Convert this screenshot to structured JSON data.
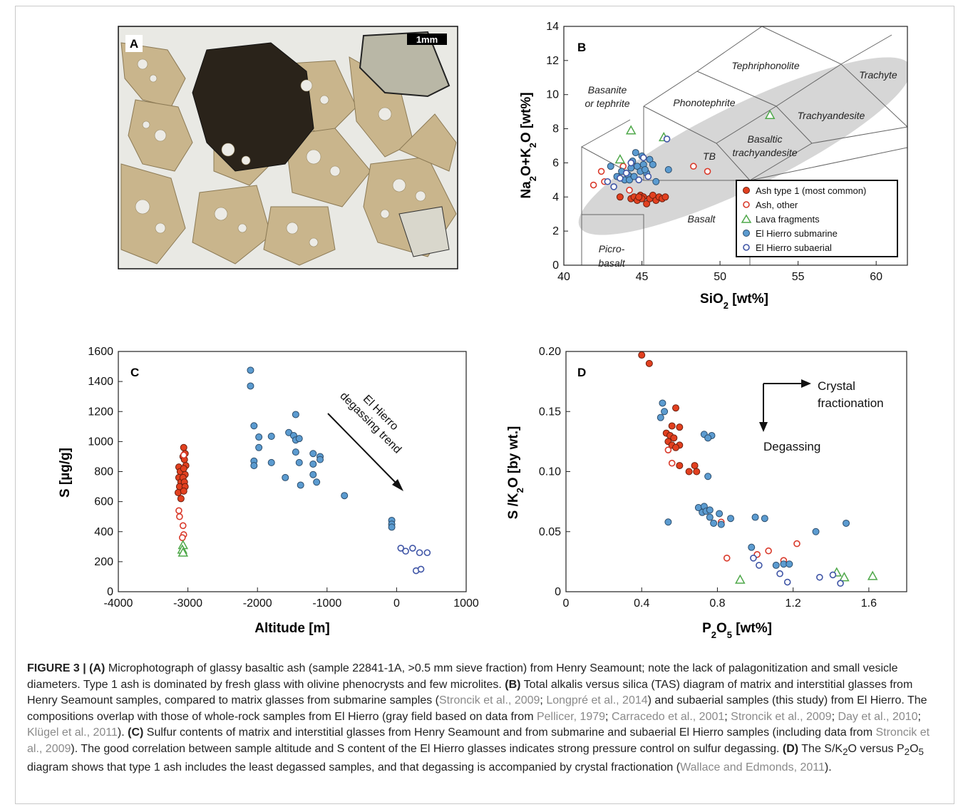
{
  "figure": {
    "panel_a": {
      "label": "A",
      "scale_label": "1mm"
    },
    "panel_b": {
      "label": "B"
    },
    "panel_c": {
      "label": "C"
    },
    "panel_d": {
      "label": "D"
    }
  },
  "chart_data": [
    {
      "type": "scatter",
      "panel": "B",
      "xlabel": "SiO2 [wt%]",
      "ylabel": "Na2O+K2O [wt%]",
      "xlim": [
        40,
        62
      ],
      "ylim": [
        0,
        14
      ],
      "xticks": [
        "40",
        "45",
        "50",
        "55",
        "60"
      ],
      "yticks": [
        "0",
        "2",
        "4",
        "6",
        "8",
        "10",
        "12",
        "14"
      ],
      "field_labels": [
        "Tephriphonolite",
        "Trachyte",
        "Basanite",
        "or tephrite",
        "Phonotephrite",
        "Trachyandesite",
        "Basaltic",
        "trachyandesite",
        "TB",
        "Basalt",
        "Picro-",
        "basalt"
      ],
      "legend": [
        "Ash type 1 (most common)",
        "Ash, other",
        "Lava fragments",
        "El Hierro submarine",
        "El Hierro subaerial"
      ],
      "series": [
        {
          "name": "Ash type 1 (most common)",
          "points": [
            [
              43.6,
              4.0
            ],
            [
              44.3,
              3.9
            ],
            [
              44.5,
              4.0
            ],
            [
              44.7,
              3.8
            ],
            [
              44.9,
              4.1
            ],
            [
              45.1,
              4.0
            ],
            [
              45.3,
              3.6
            ],
            [
              45.5,
              3.9
            ],
            [
              45.7,
              4.1
            ],
            [
              45.9,
              3.8
            ],
            [
              46.1,
              4.0
            ],
            [
              46.3,
              3.9
            ],
            [
              46.5,
              4.0
            ],
            [
              45.0,
              3.9
            ],
            [
              44.8,
              4.0
            ]
          ]
        },
        {
          "name": "Ash, other",
          "points": [
            [
              41.9,
              4.7
            ],
            [
              42.4,
              5.5
            ],
            [
              42.6,
              4.9
            ],
            [
              43.8,
              5.8
            ],
            [
              44.2,
              4.4
            ],
            [
              48.3,
              5.8
            ],
            [
              49.2,
              5.5
            ]
          ]
        },
        {
          "name": "Lava fragments",
          "points": [
            [
              44.3,
              7.9
            ],
            [
              46.4,
              7.5
            ],
            [
              43.6,
              6.2
            ],
            [
              53.2,
              8.8
            ]
          ]
        },
        {
          "name": "El Hierro submarine",
          "points": [
            [
              43.0,
              5.8
            ],
            [
              43.4,
              5.2
            ],
            [
              43.7,
              5.5
            ],
            [
              43.9,
              5.0
            ],
            [
              44.1,
              5.3
            ],
            [
              44.3,
              5.7
            ],
            [
              44.4,
              6.1
            ],
            [
              44.6,
              6.6
            ],
            [
              44.7,
              5.8
            ],
            [
              44.9,
              5.5
            ],
            [
              45.0,
              6.4
            ],
            [
              45.1,
              5.9
            ],
            [
              45.3,
              5.4
            ],
            [
              45.5,
              6.2
            ],
            [
              45.7,
              5.9
            ],
            [
              45.9,
              4.9
            ],
            [
              46.7,
              5.6
            ],
            [
              44.2,
              5.0
            ],
            [
              44.5,
              5.2
            ],
            [
              45.2,
              5.6
            ]
          ]
        },
        {
          "name": "El Hierro subaerial",
          "points": [
            [
              42.8,
              4.9
            ],
            [
              43.2,
              4.6
            ],
            [
              43.6,
              5.1
            ],
            [
              44.0,
              5.4
            ],
            [
              44.3,
              6.0
            ],
            [
              44.8,
              5.0
            ],
            [
              45.1,
              6.3
            ],
            [
              46.6,
              7.4
            ],
            [
              45.4,
              5.2
            ]
          ]
        }
      ]
    },
    {
      "type": "scatter",
      "panel": "C",
      "xlabel": "Altitude [m]",
      "ylabel": "S [µg/g]",
      "xlim": [
        -4000,
        1000
      ],
      "ylim": [
        0,
        1600
      ],
      "xticks": [
        "-4000",
        "-3000",
        "-2000",
        "-1000",
        "0",
        "1000"
      ],
      "yticks": [
        "0",
        "200",
        "400",
        "600",
        "800",
        "1000",
        "1200",
        "1400",
        "1600"
      ],
      "annotation": [
        "El Hierro",
        "degassing trend"
      ],
      "series": [
        {
          "name": "Ash type 1",
          "points": [
            [
              -3130,
              830
            ],
            [
              -3110,
              800
            ],
            [
              -3130,
              760
            ],
            [
              -3100,
              730
            ],
            [
              -3120,
              700
            ],
            [
              -3140,
              660
            ],
            [
              -3100,
              620
            ],
            [
              -3060,
              960
            ],
            [
              -3040,
              920
            ],
            [
              -3070,
              900
            ],
            [
              -3050,
              880
            ],
            [
              -3030,
              840
            ],
            [
              -3060,
              820
            ],
            [
              -3040,
              780
            ],
            [
              -3070,
              760
            ],
            [
              -3050,
              730
            ],
            [
              -3040,
              700
            ],
            [
              -3060,
              670
            ]
          ]
        },
        {
          "name": "Ash, other",
          "points": [
            [
              -3130,
              540
            ],
            [
              -3120,
              500
            ],
            [
              -3070,
              440
            ],
            [
              -3060,
              380
            ],
            [
              -3080,
              360
            ],
            [
              -3060,
              910
            ]
          ]
        },
        {
          "name": "Lava fragments",
          "points": [
            [
              -3070,
              310
            ],
            [
              -3080,
              280
            ],
            [
              -3070,
              260
            ]
          ]
        },
        {
          "name": "El Hierro submarine",
          "points": [
            [
              -2100,
              1475
            ],
            [
              -2100,
              1370
            ],
            [
              -2050,
              1105
            ],
            [
              -2050,
              870
            ],
            [
              -2050,
              840
            ],
            [
              -1980,
              1030
            ],
            [
              -1980,
              960
            ],
            [
              -1800,
              1035
            ],
            [
              -1800,
              860
            ],
            [
              -1600,
              760
            ],
            [
              -1550,
              1060
            ],
            [
              -1480,
              1040
            ],
            [
              -1450,
              1180
            ],
            [
              -1450,
              1010
            ],
            [
              -1450,
              930
            ],
            [
              -1400,
              1020
            ],
            [
              -1400,
              860
            ],
            [
              -1380,
              710
            ],
            [
              -1200,
              920
            ],
            [
              -1200,
              850
            ],
            [
              -1200,
              780
            ],
            [
              -1150,
              730
            ],
            [
              -1100,
              900
            ],
            [
              -1100,
              880
            ],
            [
              -750,
              640
            ],
            [
              -70,
              475
            ],
            [
              -70,
              450
            ],
            [
              -70,
              430
            ]
          ]
        },
        {
          "name": "El Hierro subaerial",
          "points": [
            [
              60,
              290
            ],
            [
              130,
              270
            ],
            [
              230,
              290
            ],
            [
              280,
              140
            ],
            [
              330,
              260
            ],
            [
              350,
              150
            ],
            [
              440,
              260
            ]
          ]
        }
      ]
    },
    {
      "type": "scatter",
      "panel": "D",
      "xlabel": "P2O5 [wt%]",
      "ylabel": "S /K2O [by wt.]",
      "xlim": [
        0,
        1.8
      ],
      "ylim": [
        0,
        0.2
      ],
      "xticks": [
        "0",
        "0.4",
        "0.8",
        "1.2",
        "1.6"
      ],
      "yticks": [
        "0",
        "0.05",
        "0.10",
        "0.15",
        "0.20"
      ],
      "annotations": [
        "Crystal",
        "fractionation",
        "Degassing"
      ],
      "series": [
        {
          "name": "Ash type 1",
          "points": [
            [
              0.4,
              0.197
            ],
            [
              0.44,
              0.19
            ],
            [
              0.58,
              0.153
            ],
            [
              0.56,
              0.138
            ],
            [
              0.6,
              0.137
            ],
            [
              0.53,
              0.132
            ],
            [
              0.55,
              0.13
            ],
            [
              0.57,
              0.128
            ],
            [
              0.54,
              0.125
            ],
            [
              0.56,
              0.122
            ],
            [
              0.6,
              0.122
            ],
            [
              0.58,
              0.12
            ],
            [
              0.6,
              0.105
            ],
            [
              0.68,
              0.105
            ],
            [
              0.65,
              0.1
            ],
            [
              0.69,
              0.1
            ]
          ]
        },
        {
          "name": "Ash, other",
          "points": [
            [
              0.54,
              0.118
            ],
            [
              0.56,
              0.107
            ],
            [
              0.85,
              0.028
            ],
            [
              1.01,
              0.031
            ],
            [
              1.07,
              0.034
            ],
            [
              1.15,
              0.026
            ],
            [
              1.22,
              0.04
            ],
            [
              0.82,
              0.058
            ]
          ]
        },
        {
          "name": "Lava fragments",
          "points": [
            [
              0.92,
              0.01
            ],
            [
              1.43,
              0.016
            ],
            [
              1.47,
              0.012
            ],
            [
              1.62,
              0.013
            ]
          ]
        },
        {
          "name": "El Hierro submarine",
          "points": [
            [
              0.51,
              0.157
            ],
            [
              0.52,
              0.15
            ],
            [
              0.5,
              0.145
            ],
            [
              0.54,
              0.058
            ],
            [
              0.73,
              0.131
            ],
            [
              0.77,
              0.13
            ],
            [
              0.75,
              0.128
            ],
            [
              0.75,
              0.096
            ],
            [
              0.7,
              0.07
            ],
            [
              0.72,
              0.066
            ],
            [
              0.73,
              0.071
            ],
            [
              0.74,
              0.067
            ],
            [
              0.76,
              0.068
            ],
            [
              0.76,
              0.062
            ],
            [
              0.78,
              0.057
            ],
            [
              0.81,
              0.065
            ],
            [
              0.82,
              0.056
            ],
            [
              0.87,
              0.061
            ],
            [
              1.0,
              0.062
            ],
            [
              1.05,
              0.061
            ],
            [
              0.98,
              0.037
            ],
            [
              1.11,
              0.022
            ],
            [
              1.15,
              0.023
            ],
            [
              1.18,
              0.023
            ],
            [
              1.32,
              0.05
            ],
            [
              1.48,
              0.057
            ]
          ]
        },
        {
          "name": "El Hierro subaerial",
          "points": [
            [
              0.99,
              0.028
            ],
            [
              1.02,
              0.022
            ],
            [
              1.13,
              0.015
            ],
            [
              1.17,
              0.008
            ],
            [
              1.34,
              0.012
            ],
            [
              1.41,
              0.014
            ],
            [
              1.45,
              0.007
            ]
          ]
        }
      ]
    }
  ],
  "caption": {
    "title": "FIGURE 3 | ",
    "a_label": "(A)",
    "a_text": " Microphotograph of glassy basaltic ash (sample 22841-1A, >0.5 mm sieve fraction) from Henry Seamount; note the lack of palagonitization and small vesicle diameters. Type 1 ash is dominated by fresh glass with olivine phenocrysts and few microlites. ",
    "b_label": "(B)",
    "b_text1": " Total alkalis versus silica (TAS) diagram of matrix and interstitial glasses from Henry Seamount samples, compared to matrix glasses from submarine samples (",
    "ref1": "Stroncik et al., 2009",
    "sep1": "; ",
    "ref2": "Longpré et al., 2014",
    "b_text2": ") and subaerial samples (this study) from El Hierro. The compositions overlap with those of whole-rock samples from El Hierro (gray field based on data from ",
    "ref3": "Pellicer, 1979",
    "sep2": "; ",
    "ref4": "Carracedo et al., 2001",
    "sep3": "; ",
    "ref5": "Stroncik et al., 2009",
    "sep4": "; ",
    "ref6": "Day et al., 2010",
    "sep5": "; ",
    "ref7": "Klügel et al., 2011",
    "b_text3": "). ",
    "c_label": "(C)",
    "c_text1": " Sulfur contents of matrix and interstitial glasses from Henry Seamount and from submarine and subaerial El Hierro samples (including data from ",
    "ref8": "Stroncik et al., 2009",
    "c_text2": "). The good correlation between sample altitude and S content of the El Hierro glasses indicates strong pressure control on sulfur degassing. ",
    "d_label": "(D)",
    "d_text1": " The S/K",
    "d_sub1": "2",
    "d_text2": "O versus P",
    "d_sub2": "2",
    "d_text3": "O",
    "d_sub3": "5",
    "d_text4": " diagram shows that type 1 ash includes the least degassed samples, and that degassing is accompanied by crystal fractionation (",
    "ref9": "Wallace and Edmonds, 2011",
    "d_text5": ")."
  },
  "colors": {
    "ash1": "#e2401f",
    "ash_other": "#d93a2b",
    "lava": "#4fa84a",
    "submarine": "#5b9bd0",
    "subaerial": "#3f55a6",
    "field": "#d6d6d6",
    "photo_bg": "#e9e9e4",
    "glass": "#c9b58c"
  }
}
